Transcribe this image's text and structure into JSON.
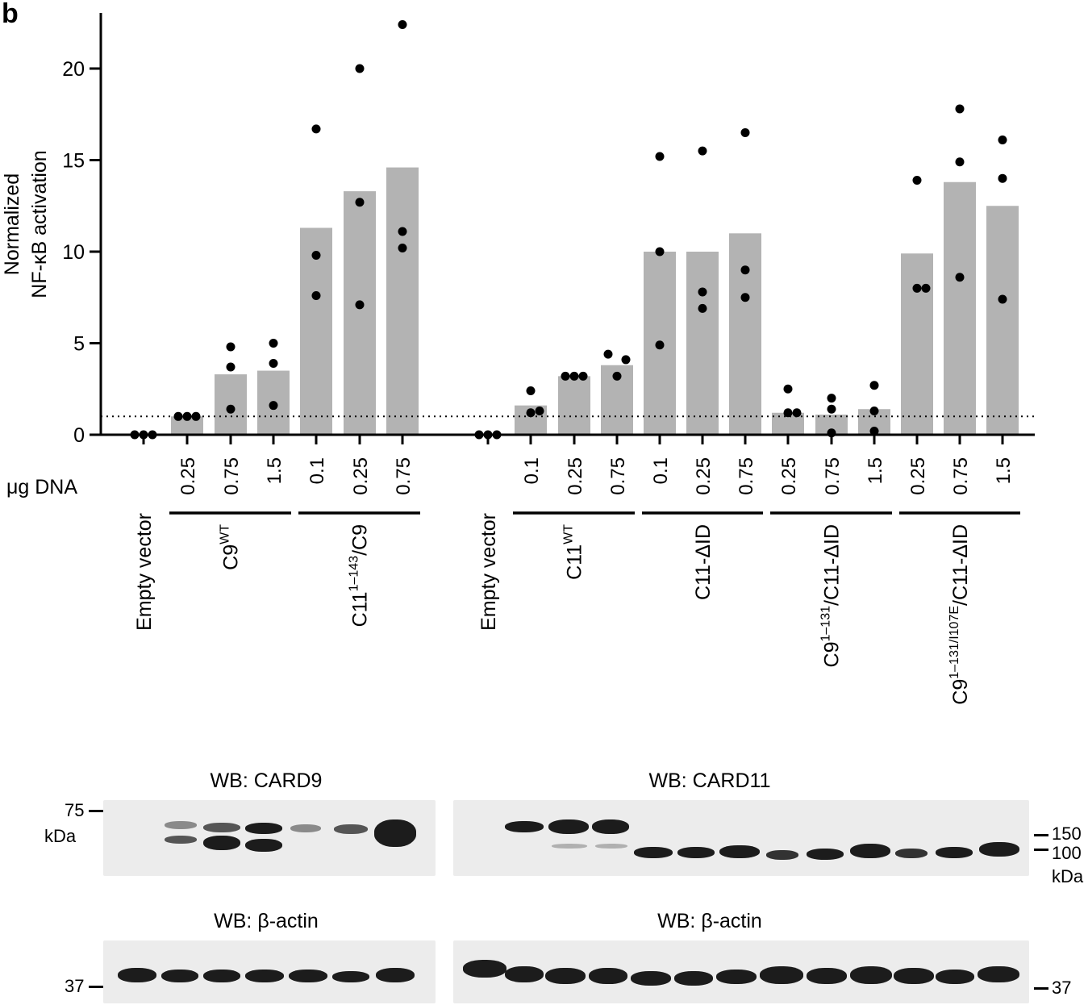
{
  "panel_label": "b",
  "chart_data": {
    "type": "bar",
    "ylabel_lines": [
      "Normalized",
      "NF-κB activation"
    ],
    "ylim": [
      0,
      23
    ],
    "yticks": [
      0,
      5,
      10,
      15,
      20
    ],
    "threshold": 1,
    "xaxis_row_label": "μg DNA",
    "dose_labels": [
      "0.25",
      "0.75",
      "1.5",
      "0.1",
      "0.25",
      "0.75",
      "0.1",
      "0.25",
      "0.75",
      "0.1",
      "0.25",
      "0.75",
      "0.25",
      "0.75",
      "1.5",
      "0.25",
      "0.75",
      "1.5"
    ],
    "groups": [
      {
        "name": "Empty vector",
        "sup": "",
        "tail": ""
      },
      {
        "name": "C9",
        "sup": "WT",
        "tail": ""
      },
      {
        "name": "C11",
        "sup": "1–143",
        "tail": "/C9"
      },
      {
        "name": "Empty vector",
        "sup": "",
        "tail": ""
      },
      {
        "name": "C11",
        "sup": "WT",
        "tail": ""
      },
      {
        "name": "C11-ΔID",
        "sup": "",
        "tail": ""
      },
      {
        "name": "C9",
        "sup": "1–131",
        "tail": "/C11-ΔID"
      },
      {
        "name": "C9",
        "sup": "1–131/I107E",
        "tail": "/C11-ΔID"
      }
    ],
    "bars": [
      {
        "group": 0,
        "dose": null,
        "value": 0,
        "points": [
          0,
          0,
          0
        ]
      },
      {
        "group": 1,
        "dose": "0.25",
        "value": 1.0,
        "points": [
          1.0,
          1.0,
          1.0
        ]
      },
      {
        "group": 1,
        "dose": "0.75",
        "value": 3.3,
        "points": [
          4.8,
          3.7,
          1.4
        ]
      },
      {
        "group": 1,
        "dose": "1.5",
        "value": 3.5,
        "points": [
          5.0,
          3.9,
          1.6
        ]
      },
      {
        "group": 2,
        "dose": "0.1",
        "value": 11.3,
        "points": [
          16.7,
          9.8,
          7.6
        ]
      },
      {
        "group": 2,
        "dose": "0.25",
        "value": 13.3,
        "points": [
          20.0,
          12.7,
          7.1
        ]
      },
      {
        "group": 2,
        "dose": "0.75",
        "value": 14.6,
        "points": [
          22.4,
          11.1,
          10.2
        ]
      },
      {
        "group": 3,
        "dose": null,
        "value": 0,
        "points": [
          0,
          0,
          0
        ]
      },
      {
        "group": 4,
        "dose": "0.1",
        "value": 1.6,
        "points": [
          2.4,
          1.2,
          1.3
        ]
      },
      {
        "group": 4,
        "dose": "0.25",
        "value": 3.2,
        "points": [
          3.2,
          3.2,
          3.2
        ]
      },
      {
        "group": 4,
        "dose": "0.75",
        "value": 3.8,
        "points": [
          4.4,
          3.2,
          4.1
        ]
      },
      {
        "group": 5,
        "dose": "0.1",
        "value": 10.0,
        "points": [
          15.2,
          10.0,
          4.9
        ]
      },
      {
        "group": 5,
        "dose": "0.25",
        "value": 10.0,
        "points": [
          15.5,
          7.8,
          6.9
        ]
      },
      {
        "group": 5,
        "dose": "0.75",
        "value": 11.0,
        "points": [
          16.5,
          9.0,
          7.5
        ]
      },
      {
        "group": 6,
        "dose": "0.25",
        "value": 1.2,
        "points": [
          2.5,
          1.2,
          1.2
        ]
      },
      {
        "group": 6,
        "dose": "0.75",
        "value": 1.1,
        "points": [
          2.0,
          1.4,
          0.1
        ]
      },
      {
        "group": 6,
        "dose": "1.5",
        "value": 1.4,
        "points": [
          2.7,
          1.3,
          0.2
        ]
      },
      {
        "group": 7,
        "dose": "0.25",
        "value": 9.9,
        "points": [
          13.9,
          8.0,
          8.0
        ]
      },
      {
        "group": 7,
        "dose": "0.75",
        "value": 13.8,
        "points": [
          17.8,
          14.9,
          8.6
        ]
      },
      {
        "group": 7,
        "dose": "1.5",
        "value": 12.5,
        "points": [
          16.1,
          14.0,
          7.4
        ]
      }
    ]
  },
  "blots": {
    "card9_title": "WB: CARD9",
    "card11_title": "WB: CARD11",
    "actin_left_title": "WB: β-actin",
    "actin_right_title": "WB: β-actin",
    "mw_left_top": "75",
    "mw_left_top_unit": "kDa",
    "mw_left_bottom": "37",
    "mw_right_1": "150",
    "mw_right_2": "100",
    "mw_right_unit": "kDa",
    "mw_right_bottom": "37"
  }
}
